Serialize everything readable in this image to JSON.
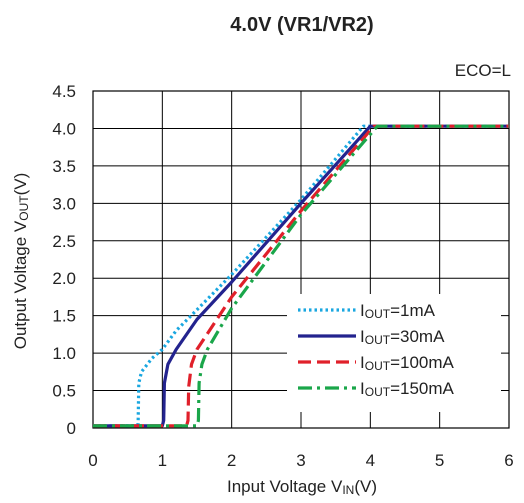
{
  "chart_data": {
    "type": "line",
    "title": "4.0V (VR1/VR2)",
    "condition": "ECO=L",
    "xlabel": {
      "main": "Input Voltage V",
      "sub": "IN",
      "tail": "(V)"
    },
    "ylabel": {
      "main": "Output Voltage V",
      "sub": "OUT",
      "tail": "(V)"
    },
    "xlim": [
      0,
      6
    ],
    "ylim": [
      0,
      4.5
    ],
    "xticks": [
      0,
      1,
      2,
      3,
      4,
      5,
      6
    ],
    "yticks": [
      0,
      0.5,
      1.0,
      1.5,
      2.0,
      2.5,
      3.0,
      3.5,
      4.0,
      4.5
    ],
    "xtick_labels": [
      "0",
      "1",
      "2",
      "3",
      "4",
      "5",
      "6"
    ],
    "ytick_labels": [
      "0",
      "0.5",
      "1.0",
      "1.5",
      "2.0",
      "2.5",
      "3.0",
      "3.5",
      "4.0",
      "4.5"
    ],
    "grid": true,
    "legend_position": "bottom-right",
    "series": [
      {
        "name": "IOUT=1mA",
        "name_prefix": "I",
        "name_sub": "OUT",
        "name_suffix": "=1mA",
        "color": "#1aa7e0",
        "dash": "dot",
        "points": [
          [
            0,
            0.03
          ],
          [
            0.6,
            0.03
          ],
          [
            0.65,
            0.05
          ],
          [
            0.66,
            0.6
          ],
          [
            0.7,
            0.75
          ],
          [
            0.85,
            0.93
          ],
          [
            1.0,
            1.05
          ],
          [
            1.2,
            1.3
          ],
          [
            1.5,
            1.58
          ],
          [
            2.0,
            2.05
          ],
          [
            3.0,
            3.05
          ],
          [
            3.9,
            4.03
          ],
          [
            6.0,
            4.03
          ]
        ]
      },
      {
        "name": "IOUT=30mA",
        "name_prefix": "I",
        "name_sub": "OUT",
        "name_suffix": "=30mA",
        "color": "#23238e",
        "dash": "solid",
        "points": [
          [
            0,
            0.03
          ],
          [
            1.0,
            0.03
          ],
          [
            1.02,
            0.1
          ],
          [
            1.03,
            0.6
          ],
          [
            1.08,
            0.85
          ],
          [
            1.2,
            1.05
          ],
          [
            1.5,
            1.45
          ],
          [
            2.0,
            1.95
          ],
          [
            3.0,
            3.0
          ],
          [
            4.0,
            4.03
          ],
          [
            6.0,
            4.03
          ]
        ]
      },
      {
        "name": "IOUT=100mA",
        "name_prefix": "I",
        "name_sub": "OUT",
        "name_suffix": "=100mA",
        "color": "#e0202a",
        "dash": "dash",
        "points": [
          [
            0,
            0.03
          ],
          [
            1.35,
            0.03
          ],
          [
            1.37,
            0.1
          ],
          [
            1.38,
            0.55
          ],
          [
            1.42,
            0.85
          ],
          [
            1.5,
            1.05
          ],
          [
            2.0,
            1.75
          ],
          [
            3.0,
            2.9
          ],
          [
            4.05,
            4.03
          ],
          [
            6.0,
            4.03
          ]
        ]
      },
      {
        "name": "IOUT=150mA",
        "name_prefix": "I",
        "name_sub": "OUT",
        "name_suffix": "=150mA",
        "color": "#1aa64a",
        "dash": "dashdot",
        "points": [
          [
            0,
            0.03
          ],
          [
            1.5,
            0.03
          ],
          [
            1.52,
            0.1
          ],
          [
            1.53,
            0.6
          ],
          [
            1.57,
            0.85
          ],
          [
            1.65,
            1.05
          ],
          [
            2.0,
            1.6
          ],
          [
            3.0,
            2.85
          ],
          [
            4.1,
            4.03
          ],
          [
            6.0,
            4.03
          ]
        ]
      }
    ]
  }
}
